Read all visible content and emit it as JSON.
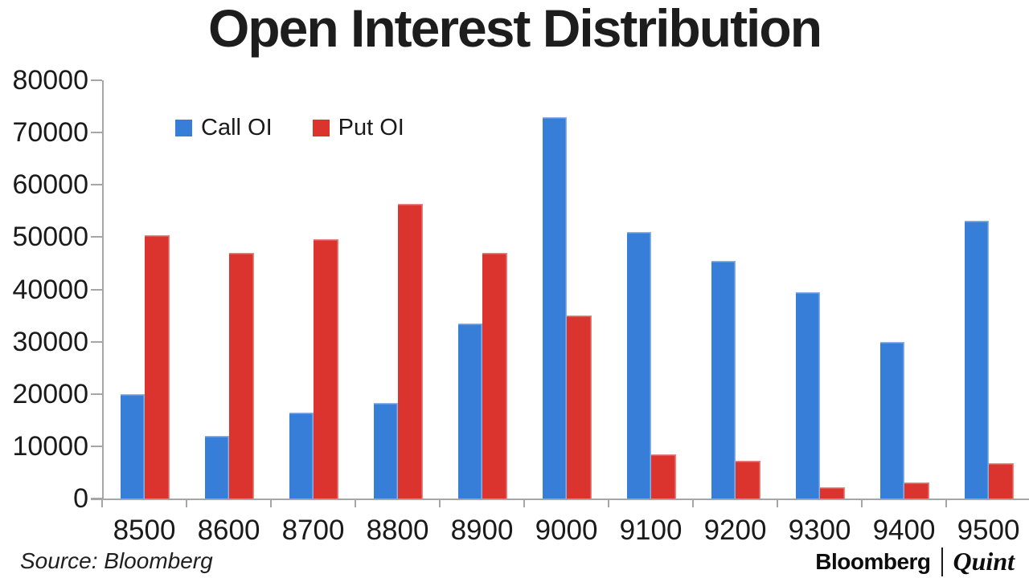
{
  "chart_data": {
    "type": "bar",
    "title": "Open Interest Distribution",
    "categories": [
      "8500",
      "8600",
      "8700",
      "8800",
      "8900",
      "9000",
      "9100",
      "9200",
      "9300",
      "9400",
      "9500"
    ],
    "series": [
      {
        "name": "Call OI",
        "color": "#377ED8",
        "values": [
          20000,
          12000,
          16500,
          18300,
          33400,
          73000,
          51000,
          45500,
          39500,
          30000,
          53200
        ]
      },
      {
        "name": "Put OI",
        "color": "#DB332D",
        "values": [
          50300,
          47000,
          49600,
          56300,
          47000,
          35000,
          8400,
          7200,
          2200,
          3100,
          6700
        ]
      }
    ],
    "ylim": [
      0,
      80000
    ],
    "yticks": [
      {
        "label": "0",
        "value": 0
      },
      {
        "label": "10000",
        "value": 10000
      },
      {
        "label": "20000",
        "value": 20000
      },
      {
        "label": "30000",
        "value": 30000
      },
      {
        "label": "40000",
        "value": 40000
      },
      {
        "label": "50000",
        "value": 50000
      },
      {
        "label": "60000",
        "value": 60000
      },
      {
        "label": "70000",
        "value": 70000
      },
      {
        "label": "80000",
        "value": 80000
      }
    ],
    "grid": false,
    "legend_position": "top-left-inside",
    "axis_color": "#A6A6A6",
    "text_color": "#1A1A1A"
  },
  "footer": {
    "source": "Source: Bloomberg",
    "brand_left": "Bloomberg",
    "brand_right": "Quint"
  }
}
